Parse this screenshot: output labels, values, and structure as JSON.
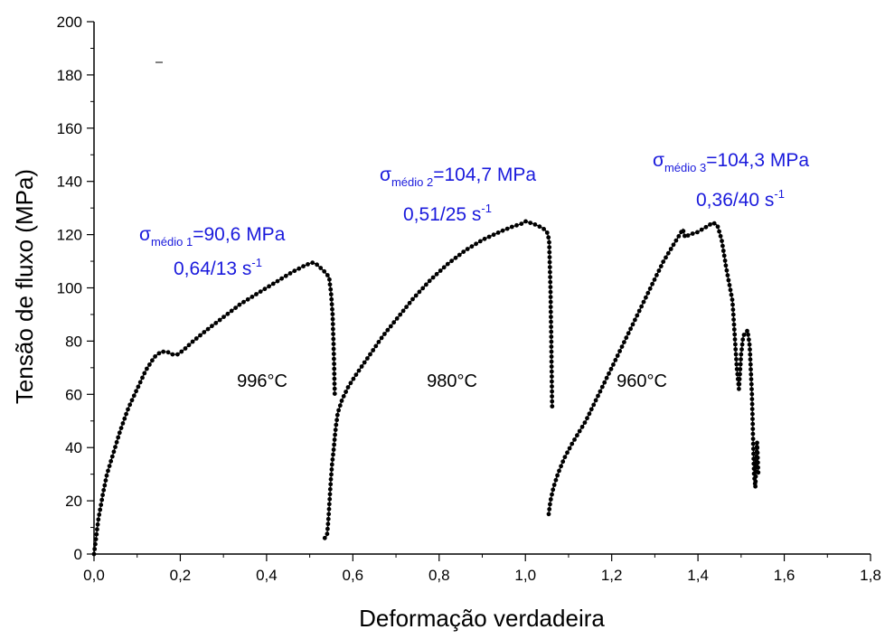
{
  "chart_data": {
    "type": "line",
    "title": "",
    "xlabel": "Deformação verdadeira",
    "ylabel": "Tensão de fluxo (MPa)",
    "xlim": [
      0.0,
      1.8
    ],
    "ylim": [
      0,
      200
    ],
    "x_ticks": [
      "0,0",
      "0,2",
      "0,4",
      "0,6",
      "0,8",
      "1,0",
      "1,2",
      "1,4",
      "1,6",
      "1,8"
    ],
    "y_ticks": [
      "0",
      "20",
      "40",
      "60",
      "80",
      "100",
      "120",
      "140",
      "160",
      "180",
      "200"
    ],
    "grid": false,
    "legend": "none",
    "colors": {
      "series": "#000000",
      "annotation": "#1a1adc"
    },
    "series": [
      {
        "label": "996°C",
        "points": [
          [
            0.0,
            0
          ],
          [
            0.004,
            5
          ],
          [
            0.01,
            13
          ],
          [
            0.02,
            22
          ],
          [
            0.03,
            30
          ],
          [
            0.045,
            38
          ],
          [
            0.06,
            46
          ],
          [
            0.08,
            55
          ],
          [
            0.1,
            62
          ],
          [
            0.12,
            69
          ],
          [
            0.14,
            74
          ],
          [
            0.155,
            76
          ],
          [
            0.17,
            76
          ],
          [
            0.18,
            75
          ],
          [
            0.195,
            75
          ],
          [
            0.21,
            77
          ],
          [
            0.23,
            80
          ],
          [
            0.26,
            84
          ],
          [
            0.3,
            89
          ],
          [
            0.34,
            94
          ],
          [
            0.38,
            98
          ],
          [
            0.42,
            102
          ],
          [
            0.46,
            106
          ],
          [
            0.49,
            108.5
          ],
          [
            0.505,
            109.5
          ],
          [
            0.515,
            109
          ],
          [
            0.525,
            107.5
          ],
          [
            0.535,
            106
          ],
          [
            0.545,
            104
          ],
          [
            0.55,
            97
          ],
          [
            0.553,
            90
          ],
          [
            0.556,
            75
          ],
          [
            0.558,
            60
          ]
        ]
      },
      {
        "label": "980°C",
        "points": [
          [
            0.535,
            6
          ],
          [
            0.54,
            7
          ],
          [
            0.543,
            12
          ],
          [
            0.546,
            20
          ],
          [
            0.549,
            28
          ],
          [
            0.552,
            34
          ],
          [
            0.556,
            40
          ],
          [
            0.56,
            47
          ],
          [
            0.565,
            53
          ],
          [
            0.575,
            58
          ],
          [
            0.59,
            63
          ],
          [
            0.61,
            68
          ],
          [
            0.64,
            75
          ],
          [
            0.67,
            82
          ],
          [
            0.7,
            88
          ],
          [
            0.74,
            96
          ],
          [
            0.78,
            103
          ],
          [
            0.82,
            109
          ],
          [
            0.86,
            114
          ],
          [
            0.9,
            118
          ],
          [
            0.94,
            121
          ],
          [
            0.97,
            123
          ],
          [
            0.99,
            124
          ],
          [
            1.0,
            125
          ],
          [
            1.02,
            124
          ],
          [
            1.04,
            122.5
          ],
          [
            1.05,
            121
          ],
          [
            1.055,
            118
          ],
          [
            1.058,
            100
          ],
          [
            1.06,
            80
          ],
          [
            1.062,
            55
          ]
        ]
      },
      {
        "label": "960°C",
        "points": [
          [
            1.054,
            15
          ],
          [
            1.058,
            20
          ],
          [
            1.065,
            25
          ],
          [
            1.075,
            30
          ],
          [
            1.09,
            36
          ],
          [
            1.11,
            42
          ],
          [
            1.14,
            50
          ],
          [
            1.17,
            60
          ],
          [
            1.2,
            70
          ],
          [
            1.23,
            80
          ],
          [
            1.26,
            90
          ],
          [
            1.29,
            100
          ],
          [
            1.32,
            110
          ],
          [
            1.35,
            118
          ],
          [
            1.365,
            122
          ],
          [
            1.37,
            119
          ],
          [
            1.38,
            120
          ],
          [
            1.4,
            121
          ],
          [
            1.42,
            123
          ],
          [
            1.435,
            124.5
          ],
          [
            1.445,
            123.5
          ],
          [
            1.455,
            118
          ],
          [
            1.465,
            108
          ],
          [
            1.48,
            95
          ],
          [
            1.49,
            70
          ],
          [
            1.495,
            62
          ],
          [
            1.5,
            75
          ],
          [
            1.505,
            82
          ],
          [
            1.515,
            84
          ],
          [
            1.52,
            78
          ],
          [
            1.525,
            60
          ],
          [
            1.53,
            30
          ],
          [
            1.533,
            25
          ],
          [
            1.537,
            42
          ],
          [
            1.54,
            30
          ]
        ]
      }
    ],
    "annotations": [
      {
        "sigma": "σ",
        "subscript": "médio 1",
        "value": "=90,6 MPa",
        "rate": "0,64/13 s",
        "rate_exponent": "-1"
      },
      {
        "sigma": "σ",
        "subscript": "médio 2",
        "value": "=104,7 MPa",
        "rate": "0,51/25 s",
        "rate_exponent": "-1"
      },
      {
        "sigma": "σ",
        "subscript": "médio 3",
        "value": "=104,3 MPa",
        "rate": "0,36/40 s",
        "rate_exponent": "-1"
      }
    ]
  }
}
